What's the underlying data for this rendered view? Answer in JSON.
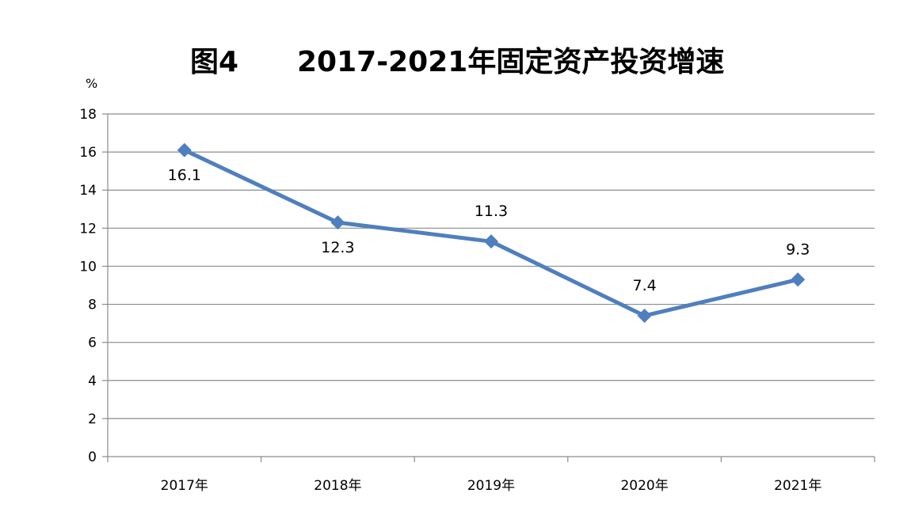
{
  "chart_data": {
    "type": "line",
    "title_prefix": "图4",
    "title": "2017-2021年固定资产投资增速",
    "ylabel": "%",
    "xlabel": "",
    "categories": [
      "2017年",
      "2018年",
      "2019年",
      "2020年",
      "2021年"
    ],
    "series": [
      {
        "values": [
          16.1,
          12.3,
          11.3,
          7.4,
          9.3
        ],
        "color": "#4F7FBE"
      }
    ],
    "data_labels": [
      "16.1",
      "12.3",
      "11.3",
      "7.4",
      "9.3"
    ],
    "ylim": [
      0,
      18
    ],
    "yticks": [
      0,
      2,
      4,
      6,
      8,
      10,
      12,
      14,
      16,
      18
    ],
    "ytick_labels": [
      "0",
      "2",
      "4",
      "6",
      "8",
      "10",
      "12",
      "14",
      "16",
      "18"
    ],
    "grid": true,
    "legend": "none"
  }
}
